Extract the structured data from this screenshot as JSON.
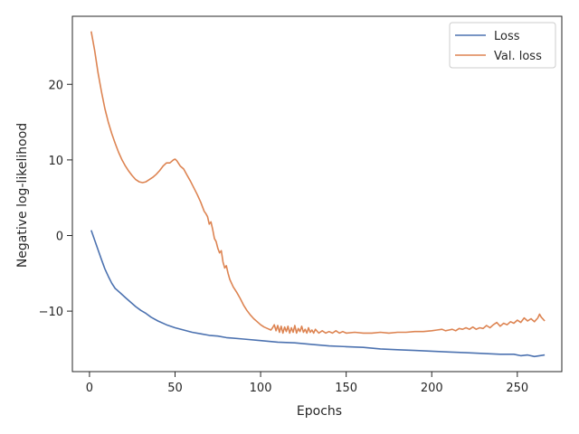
{
  "chart_data": {
    "type": "line",
    "xlabel": "Epochs",
    "ylabel": "Negative log-likelihood",
    "xlim": [
      -10,
      276
    ],
    "ylim": [
      -18,
      29
    ],
    "xticks": [
      0,
      50,
      100,
      150,
      200,
      250
    ],
    "yticks": [
      -10,
      0,
      10,
      20
    ],
    "ytick_labels": [
      "−10",
      "0",
      "10",
      "20"
    ],
    "grid": false,
    "legend_position": "top-right",
    "series": [
      {
        "name": "Loss",
        "color": "#4c72b0",
        "points": [
          [
            1,
            0.7
          ],
          [
            3,
            -0.6
          ],
          [
            5,
            -1.9
          ],
          [
            7,
            -3.2
          ],
          [
            9,
            -4.4
          ],
          [
            11,
            -5.4
          ],
          [
            13,
            -6.3
          ],
          [
            15,
            -7.0
          ],
          [
            18,
            -7.6
          ],
          [
            21,
            -8.2
          ],
          [
            24,
            -8.8
          ],
          [
            27,
            -9.4
          ],
          [
            30,
            -9.9
          ],
          [
            33,
            -10.3
          ],
          [
            36,
            -10.8
          ],
          [
            40,
            -11.3
          ],
          [
            45,
            -11.8
          ],
          [
            50,
            -12.2
          ],
          [
            55,
            -12.5
          ],
          [
            60,
            -12.8
          ],
          [
            65,
            -13.0
          ],
          [
            70,
            -13.2
          ],
          [
            75,
            -13.3
          ],
          [
            80,
            -13.5
          ],
          [
            90,
            -13.7
          ],
          [
            100,
            -13.9
          ],
          [
            110,
            -14.1
          ],
          [
            120,
            -14.2
          ],
          [
            130,
            -14.4
          ],
          [
            140,
            -14.6
          ],
          [
            150,
            -14.7
          ],
          [
            160,
            -14.8
          ],
          [
            170,
            -15.0
          ],
          [
            180,
            -15.1
          ],
          [
            190,
            -15.2
          ],
          [
            200,
            -15.3
          ],
          [
            210,
            -15.4
          ],
          [
            220,
            -15.5
          ],
          [
            230,
            -15.6
          ],
          [
            240,
            -15.7
          ],
          [
            248,
            -15.7
          ],
          [
            252,
            -15.9
          ],
          [
            256,
            -15.8
          ],
          [
            260,
            -16.0
          ],
          [
            263,
            -15.9
          ],
          [
            266,
            -15.8
          ]
        ]
      },
      {
        "name": "Val. loss",
        "color": "#dd8452",
        "points": [
          [
            1,
            27.0
          ],
          [
            3,
            24.5
          ],
          [
            5,
            21.5
          ],
          [
            7,
            19.0
          ],
          [
            9,
            16.8
          ],
          [
            11,
            15.0
          ],
          [
            13,
            13.5
          ],
          [
            15,
            12.2
          ],
          [
            17,
            11.0
          ],
          [
            19,
            10.0
          ],
          [
            21,
            9.2
          ],
          [
            23,
            8.5
          ],
          [
            25,
            7.9
          ],
          [
            27,
            7.4
          ],
          [
            29,
            7.1
          ],
          [
            31,
            7.0
          ],
          [
            33,
            7.1
          ],
          [
            35,
            7.4
          ],
          [
            37,
            7.7
          ],
          [
            39,
            8.1
          ],
          [
            41,
            8.6
          ],
          [
            43,
            9.2
          ],
          [
            45,
            9.6
          ],
          [
            47,
            9.6
          ],
          [
            49,
            10.0
          ],
          [
            50,
            10.1
          ],
          [
            51,
            9.9
          ],
          [
            53,
            9.2
          ],
          [
            55,
            8.8
          ],
          [
            57,
            8.0
          ],
          [
            59,
            7.2
          ],
          [
            61,
            6.3
          ],
          [
            63,
            5.4
          ],
          [
            65,
            4.4
          ],
          [
            67,
            3.2
          ],
          [
            68,
            2.9
          ],
          [
            69,
            2.5
          ],
          [
            70,
            1.5
          ],
          [
            71,
            1.8
          ],
          [
            72,
            0.8
          ],
          [
            73,
            -0.4
          ],
          [
            74,
            -0.8
          ],
          [
            75,
            -1.7
          ],
          [
            76,
            -2.3
          ],
          [
            77,
            -2.0
          ],
          [
            78,
            -3.5
          ],
          [
            79,
            -4.3
          ],
          [
            80,
            -4.0
          ],
          [
            81,
            -5.0
          ],
          [
            82,
            -5.8
          ],
          [
            83,
            -6.3
          ],
          [
            84,
            -6.8
          ],
          [
            86,
            -7.5
          ],
          [
            88,
            -8.3
          ],
          [
            90,
            -9.2
          ],
          [
            92,
            -9.9
          ],
          [
            94,
            -10.5
          ],
          [
            96,
            -11.0
          ],
          [
            98,
            -11.4
          ],
          [
            100,
            -11.8
          ],
          [
            102,
            -12.1
          ],
          [
            104,
            -12.3
          ],
          [
            106,
            -12.5
          ],
          [
            107,
            -12.2
          ],
          [
            108,
            -11.8
          ],
          [
            109,
            -12.6
          ],
          [
            110,
            -11.9
          ],
          [
            111,
            -12.8
          ],
          [
            112,
            -12.0
          ],
          [
            113,
            -12.9
          ],
          [
            114,
            -12.1
          ],
          [
            115,
            -12.7
          ],
          [
            116,
            -12.0
          ],
          [
            117,
            -12.9
          ],
          [
            118,
            -12.2
          ],
          [
            119,
            -12.8
          ],
          [
            120,
            -11.9
          ],
          [
            121,
            -12.9
          ],
          [
            122,
            -12.3
          ],
          [
            123,
            -12.7
          ],
          [
            124,
            -12.0
          ],
          [
            125,
            -12.8
          ],
          [
            126,
            -12.4
          ],
          [
            127,
            -12.9
          ],
          [
            128,
            -12.2
          ],
          [
            129,
            -12.8
          ],
          [
            130,
            -12.5
          ],
          [
            131,
            -12.9
          ],
          [
            132,
            -12.4
          ],
          [
            134,
            -12.9
          ],
          [
            136,
            -12.6
          ],
          [
            138,
            -12.9
          ],
          [
            140,
            -12.7
          ],
          [
            142,
            -12.9
          ],
          [
            144,
            -12.6
          ],
          [
            146,
            -12.9
          ],
          [
            148,
            -12.7
          ],
          [
            150,
            -12.9
          ],
          [
            155,
            -12.8
          ],
          [
            160,
            -12.9
          ],
          [
            165,
            -12.9
          ],
          [
            170,
            -12.8
          ],
          [
            175,
            -12.9
          ],
          [
            180,
            -12.8
          ],
          [
            185,
            -12.8
          ],
          [
            190,
            -12.7
          ],
          [
            195,
            -12.7
          ],
          [
            200,
            -12.6
          ],
          [
            203,
            -12.5
          ],
          [
            206,
            -12.4
          ],
          [
            208,
            -12.6
          ],
          [
            210,
            -12.5
          ],
          [
            212,
            -12.4
          ],
          [
            214,
            -12.6
          ],
          [
            216,
            -12.3
          ],
          [
            218,
            -12.4
          ],
          [
            220,
            -12.2
          ],
          [
            222,
            -12.4
          ],
          [
            224,
            -12.1
          ],
          [
            226,
            -12.4
          ],
          [
            228,
            -12.2
          ],
          [
            230,
            -12.3
          ],
          [
            232,
            -11.9
          ],
          [
            234,
            -12.2
          ],
          [
            236,
            -11.8
          ],
          [
            238,
            -11.5
          ],
          [
            240,
            -12.0
          ],
          [
            242,
            -11.6
          ],
          [
            244,
            -11.8
          ],
          [
            246,
            -11.4
          ],
          [
            248,
            -11.6
          ],
          [
            250,
            -11.2
          ],
          [
            252,
            -11.5
          ],
          [
            254,
            -10.9
          ],
          [
            256,
            -11.3
          ],
          [
            258,
            -11.0
          ],
          [
            260,
            -11.4
          ],
          [
            262,
            -10.9
          ],
          [
            263,
            -10.4
          ],
          [
            264,
            -10.8
          ],
          [
            266,
            -11.3
          ]
        ]
      }
    ]
  }
}
